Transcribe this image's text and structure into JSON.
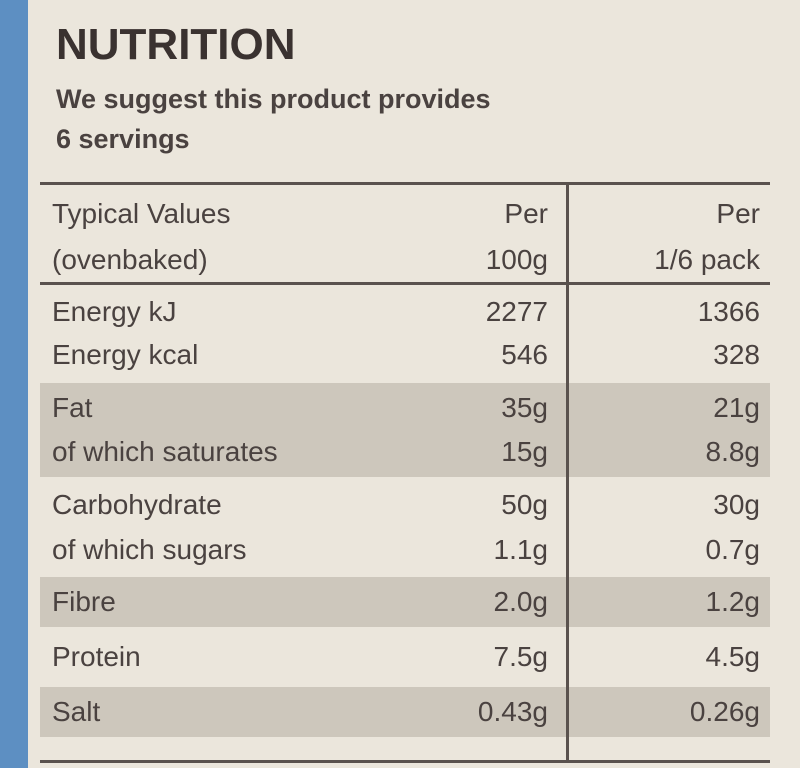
{
  "header": {
    "title": "NUTRITION",
    "subtitle": [
      "We suggest this product provides",
      "6 servings"
    ]
  },
  "table": {
    "header": [
      [
        "Typical Values",
        "(ovenbaked)"
      ],
      [
        "Per",
        "100g"
      ],
      [
        "Per",
        "1/6 pack"
      ]
    ],
    "groups": [
      {
        "shaded": false,
        "rows": [
          [
            "Energy kJ",
            "2277",
            "1366"
          ],
          [
            "Energy kcal",
            "546",
            "328"
          ]
        ]
      },
      {
        "shaded": true,
        "rows": [
          [
            "Fat",
            "35g",
            "21g"
          ],
          [
            "of which saturates",
            "15g",
            "8.8g"
          ]
        ]
      },
      {
        "shaded": false,
        "rows": [
          [
            "Carbohydrate",
            "50g",
            "30g"
          ],
          [
            "of which sugars",
            "1.1g",
            "0.7g"
          ]
        ]
      },
      {
        "shaded": true,
        "rows": [
          [
            "Fibre",
            "2.0g",
            "1.2g"
          ]
        ]
      },
      {
        "shaded": false,
        "rows": [
          [
            "Protein",
            "7.5g",
            "4.5g"
          ]
        ]
      },
      {
        "shaded": true,
        "rows": [
          [
            "Salt",
            "0.43g",
            "0.26g"
          ]
        ]
      }
    ]
  }
}
